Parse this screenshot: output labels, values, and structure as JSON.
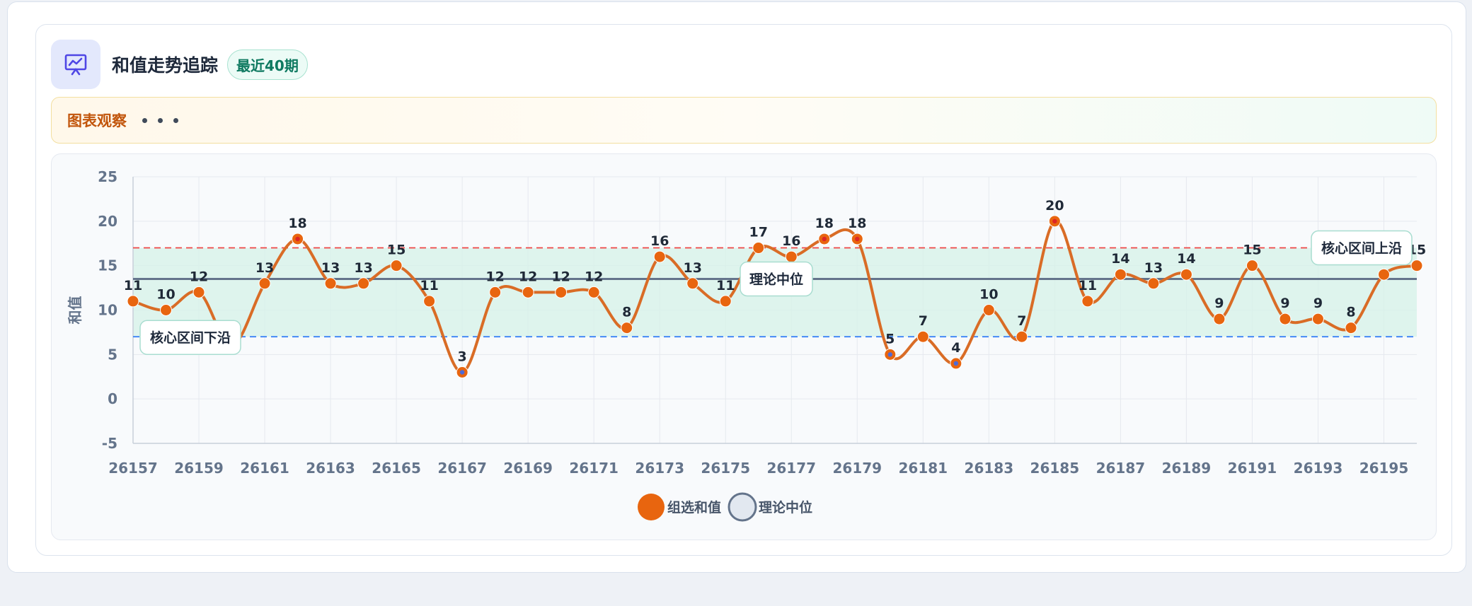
{
  "header": {
    "title": "和值走势追踪",
    "badge": "最近40期",
    "icon": "chart-presentation-icon"
  },
  "observation": {
    "label": "图表观察"
  },
  "colors": {
    "series": "#e8650f",
    "line": "#d96c26",
    "median": "#64748b",
    "upper": "#ef4444",
    "lower": "#3b82f6",
    "band": "#d6f1e8",
    "low_point_center": "#4f6bd8"
  },
  "chart_data": {
    "type": "line",
    "x": [
      "26157",
      "26158",
      "26159",
      "26160",
      "26161",
      "26162",
      "26163",
      "26164",
      "26165",
      "26166",
      "26167",
      "26168",
      "26169",
      "26170",
      "26171",
      "26172",
      "26173",
      "26174",
      "26175",
      "26176",
      "26177",
      "26178",
      "26179",
      "26180",
      "26181",
      "26182",
      "26183",
      "26184",
      "26185",
      "26186",
      "26187",
      "26188",
      "26189",
      "26190",
      "26191",
      "26192",
      "26193",
      "26194",
      "26195",
      "26196"
    ],
    "x_tick_labels": [
      "26157",
      "26159",
      "26161",
      "26163",
      "26165",
      "26167",
      "26169",
      "26171",
      "26173",
      "26175",
      "26177",
      "26179",
      "26181",
      "26183",
      "26185",
      "26187",
      "26189",
      "26191",
      "26193",
      "26195"
    ],
    "series": [
      {
        "name": "组选和值",
        "values": [
          11,
          10,
          12,
          6,
          13,
          18,
          13,
          13,
          15,
          11,
          3,
          12,
          12,
          12,
          12,
          8,
          16,
          13,
          11,
          17,
          16,
          18,
          18,
          5,
          7,
          4,
          10,
          7,
          20,
          11,
          14,
          13,
          14,
          9,
          15,
          9,
          9,
          8,
          14,
          15
        ]
      }
    ],
    "reference_lines": [
      {
        "name": "理论中位",
        "value": 13.5,
        "style": "solid"
      },
      {
        "name": "核心区间上沿",
        "value": 17,
        "style": "dashed"
      },
      {
        "name": "核心区间下沿",
        "value": 7,
        "style": "dashed"
      }
    ],
    "core_band": [
      7,
      17
    ],
    "ylabel": "和值",
    "ylim": [
      -5,
      25
    ],
    "yticks": [
      -5,
      0,
      5,
      10,
      15,
      20,
      25
    ],
    "grid": true,
    "legend": {
      "placement": "bottom-center",
      "items": [
        {
          "label": "组选和值",
          "color": "#e8650f"
        },
        {
          "label": "理论中位",
          "color": "#64748b"
        }
      ]
    },
    "annotations": [
      {
        "text": "核心区间下沿"
      },
      {
        "text": "理论中位"
      },
      {
        "text": "核心区间上沿"
      }
    ]
  }
}
